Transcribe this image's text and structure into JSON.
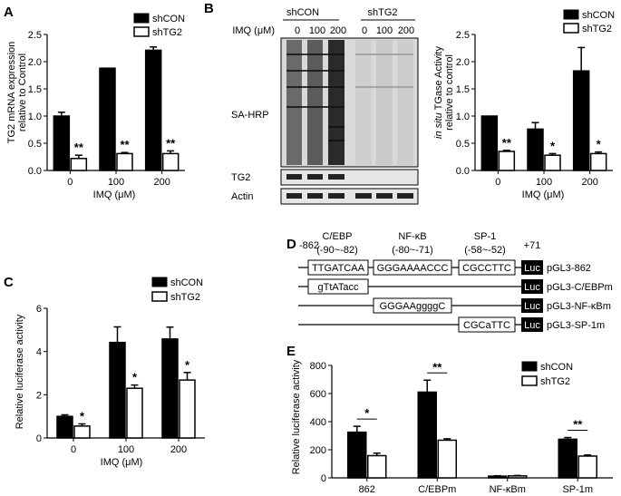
{
  "panels": {
    "A": "A",
    "B": "B",
    "C": "C",
    "D": "D",
    "E": "E"
  },
  "chart_data": [
    {
      "panel": "A",
      "type": "bar",
      "categories": [
        "0",
        "100",
        "200"
      ],
      "series": [
        {
          "name": "shCON",
          "values": [
            1.0,
            1.88,
            2.21
          ],
          "errors": [
            0.07,
            0.0,
            0.06
          ],
          "color": "#000000"
        },
        {
          "name": "shTG2",
          "values": [
            0.22,
            0.31,
            0.31
          ],
          "errors": [
            0.06,
            0.02,
            0.05
          ],
          "color": "#ffffff"
        }
      ],
      "significance": [
        "**",
        "**",
        "**"
      ],
      "ylabel_line1": "TG2 mRNA expression",
      "ylabel_line2": "relative to Control",
      "xlabel": "IMQ (μM)",
      "ylim": [
        0,
        2.5
      ],
      "yticks": [
        "0.0",
        "0.5",
        "1.0",
        "1.5",
        "2.0",
        "2.5"
      ],
      "legend": "top-right"
    },
    {
      "panel": "B-right",
      "type": "bar",
      "categories": [
        "0",
        "100",
        "200"
      ],
      "series": [
        {
          "name": "shCON",
          "values": [
            1.0,
            0.76,
            1.83
          ],
          "errors": [
            0.0,
            0.12,
            0.43
          ],
          "color": "#000000"
        },
        {
          "name": "shTG2",
          "values": [
            0.35,
            0.28,
            0.31
          ],
          "errors": [
            0.02,
            0.03,
            0.03
          ],
          "color": "#ffffff"
        }
      ],
      "significance": [
        "**",
        "*",
        "*"
      ],
      "ylabel_italic": "in situ",
      "ylabel_line1": " TGase Activity",
      "ylabel_line2": "relative to control",
      "xlabel": "IMQ (μM)",
      "ylim": [
        0,
        2.5
      ],
      "yticks": [
        "0.0",
        "0.5",
        "1.0",
        "1.5",
        "2.0",
        "2.5"
      ],
      "legend": "top-right"
    },
    {
      "panel": "C",
      "type": "bar",
      "categories": [
        "0",
        "100",
        "200"
      ],
      "series": [
        {
          "name": "shCON",
          "values": [
            1.0,
            4.42,
            4.58
          ],
          "errors": [
            0.07,
            0.72,
            0.55
          ],
          "color": "#000000"
        },
        {
          "name": "shTG2",
          "values": [
            0.55,
            2.3,
            2.68
          ],
          "errors": [
            0.1,
            0.15,
            0.35
          ],
          "color": "#ffffff"
        }
      ],
      "significance": [
        "*",
        "*",
        "*"
      ],
      "ylabel": "Relative luciferase activity",
      "xlabel": "IMQ (μM)",
      "ylim": [
        0,
        6
      ],
      "yticks": [
        "0",
        "2",
        "4",
        "6"
      ],
      "legend": "top-right"
    },
    {
      "panel": "E",
      "type": "bar",
      "categories": [
        "862",
        "C/EBPm",
        "NF-κBm",
        "SP-1m"
      ],
      "series": [
        {
          "name": "shCON",
          "values": [
            325,
            610,
            12,
            275
          ],
          "errors": [
            42,
            85,
            3,
            12
          ],
          "color": "#000000"
        },
        {
          "name": "shTG2",
          "values": [
            158,
            268,
            14,
            155
          ],
          "errors": [
            18,
            10,
            3,
            8
          ],
          "color": "#ffffff"
        }
      ],
      "significance": [
        "*",
        "**",
        "",
        "**"
      ],
      "ylabel": "Relative luciferase activity",
      "xlabel": "",
      "ylim": [
        0,
        800
      ],
      "yticks": [
        "0",
        "200",
        "400",
        "600",
        "800"
      ],
      "legend": "top-right"
    }
  ],
  "blot": {
    "group1": "shCON",
    "group2": "shTG2",
    "imq_label": "IMQ (μM)",
    "doses": [
      "0",
      "100",
      "200",
      "0",
      "100",
      "200"
    ],
    "rows": [
      "SA-HRP",
      "TG2",
      "Actin"
    ]
  },
  "promoter": {
    "start": "-862",
    "end": "+71",
    "sites": [
      {
        "name": "C/EBP",
        "range": "(-90~-82)",
        "seq": "TTGATCAA"
      },
      {
        "name": "NF-κB",
        "range": "(-80~-71)",
        "seq": "GGGAAAACCC"
      },
      {
        "name": "SP-1",
        "range": "(-58~-52)",
        "seq": "CGCCTTC"
      }
    ],
    "mutants": [
      "gTtATacc",
      "GGGAAggggC",
      "CGCaTTC"
    ],
    "luc": "Luc",
    "constructs": [
      "pGL3-862",
      "pGL3-C/EBPm",
      "pGL3-NF-κBm",
      "pGL3-SP-1m"
    ]
  }
}
